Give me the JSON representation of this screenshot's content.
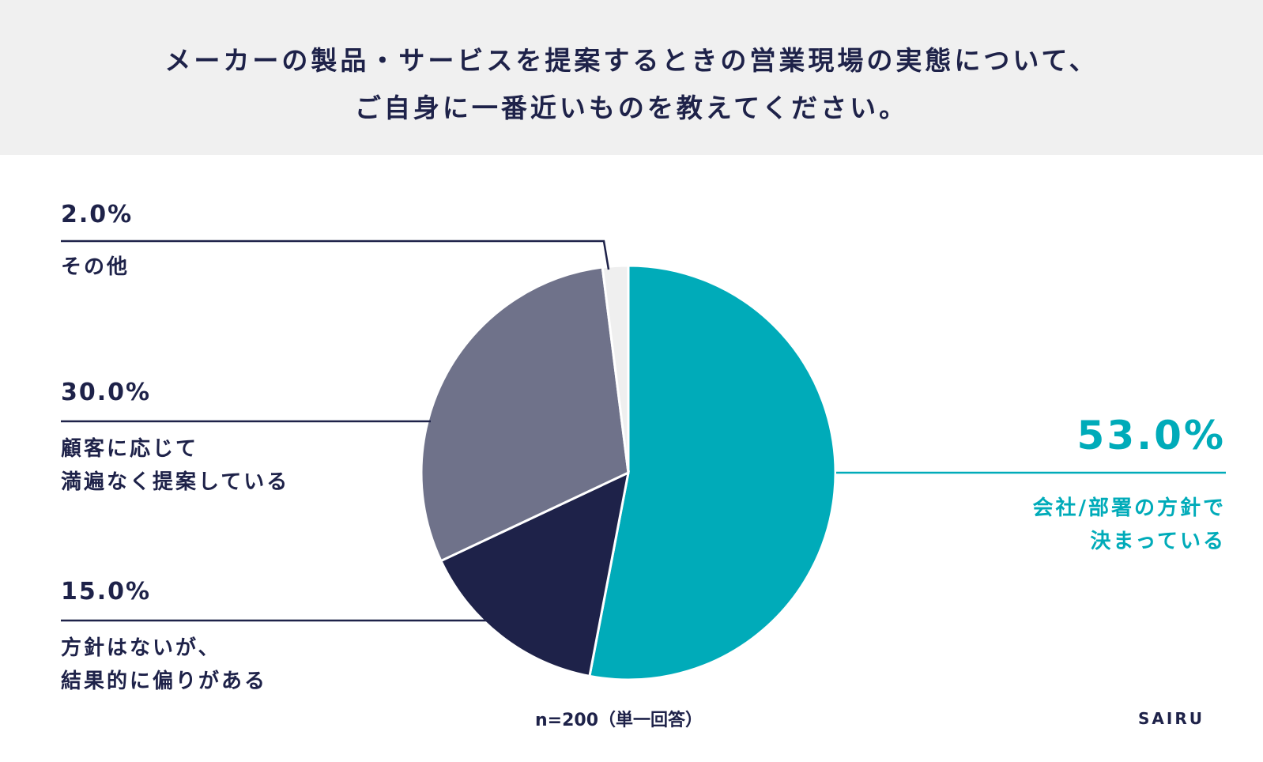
{
  "header": {
    "title_line1": "メーカーの製品・サービスを提案するときの営業現場の実態について、",
    "title_line2": "ご自身に一番近いものを教えてください。"
  },
  "chart_data": {
    "type": "pie",
    "slices": [
      {
        "label": "会社/部署の方針で決まっている",
        "label_line1": "会社/部署の方針で",
        "label_line2": "決まっている",
        "value": 53.0,
        "display": "53.0%",
        "color": "#00abb9"
      },
      {
        "label": "方針はないが、結果的に偏りがある",
        "label_line1": "方針はないが、",
        "label_line2": "結果的に偏りがある",
        "value": 15.0,
        "display": "15.0%",
        "color": "#1e2249"
      },
      {
        "label": "顧客に応じて満遍なく提案している",
        "label_line1": "顧客に応じて",
        "label_line2": "満遍なく提案している",
        "value": 30.0,
        "display": "30.0%",
        "color": "#6f728a"
      },
      {
        "label": "その他",
        "label_line1": "その他",
        "label_line2": "",
        "value": 2.0,
        "display": "2.0%",
        "color": "#efefef"
      }
    ],
    "start": "top",
    "direction": "clockwise"
  },
  "footer": {
    "note": "n=200（単一回答）",
    "brand": "SAIRU"
  }
}
